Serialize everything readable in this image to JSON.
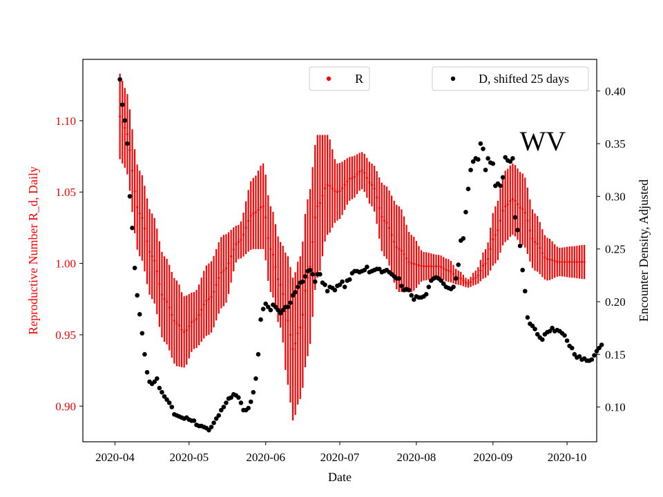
{
  "chart_data": {
    "type": "line",
    "title": "",
    "annotation": "WV",
    "xlabel": "Date",
    "ylabel_left": "Reproductive Number R_d, Daily",
    "ylabel_right": "Encounter Density, Adjusted",
    "colors": {
      "left_axis": "#ff0000",
      "R": "#ff0000",
      "D": "#000000",
      "axes": "#000000"
    },
    "x_ticks": [
      "2020-04",
      "2020-05",
      "2020-06",
      "2020-07",
      "2020-08",
      "2020-09",
      "2020-10"
    ],
    "x_tick_days": [
      0,
      30,
      61,
      91,
      122,
      153,
      183
    ],
    "xlim_days": [
      -13,
      195
    ],
    "y_left_ticks": [
      "0.90",
      "0.95",
      "1.00",
      "1.05",
      "1.10"
    ],
    "y_left_tick_values": [
      0.9,
      0.95,
      1.0,
      1.05,
      1.1
    ],
    "ylim_left": [
      0.875,
      1.143
    ],
    "y_right_ticks": [
      "0.10",
      "0.15",
      "0.20",
      "0.25",
      "0.30",
      "0.35",
      "0.40"
    ],
    "y_right_tick_values": [
      0.1,
      0.15,
      0.2,
      0.25,
      0.3,
      0.35,
      0.4
    ],
    "ylim_right": [
      0.067,
      0.43
    ],
    "legend_R": {
      "label": "R",
      "placement": "top-center"
    },
    "legend_D": {
      "label": "D, shifted 25 days",
      "placement": "top-right"
    },
    "series_R": {
      "name": "R",
      "error_bars": true,
      "knots": [
        {
          "day": 2,
          "center": 1.103,
          "half": 0.03
        },
        {
          "day": 4,
          "center": 1.095,
          "half": 0.028
        },
        {
          "day": 10,
          "center": 1.035,
          "half": 0.03
        },
        {
          "day": 15,
          "center": 1.005,
          "half": 0.03
        },
        {
          "day": 20,
          "center": 0.975,
          "half": 0.03
        },
        {
          "day": 25,
          "center": 0.958,
          "half": 0.03
        },
        {
          "day": 28,
          "center": 0.952,
          "half": 0.025
        },
        {
          "day": 32,
          "center": 0.96,
          "half": 0.02
        },
        {
          "day": 38,
          "center": 0.975,
          "half": 0.025
        },
        {
          "day": 44,
          "center": 0.995,
          "half": 0.025
        },
        {
          "day": 50,
          "center": 1.015,
          "half": 0.012
        },
        {
          "day": 56,
          "center": 1.035,
          "half": 0.025
        },
        {
          "day": 60,
          "center": 1.04,
          "half": 0.03
        },
        {
          "day": 63,
          "center": 1.01,
          "half": 0.03
        },
        {
          "day": 67,
          "center": 0.985,
          "half": 0.03
        },
        {
          "day": 70,
          "center": 0.96,
          "half": 0.045
        },
        {
          "day": 72,
          "center": 0.94,
          "half": 0.05
        },
        {
          "day": 75,
          "center": 0.955,
          "half": 0.05
        },
        {
          "day": 78,
          "center": 0.99,
          "half": 0.055
        },
        {
          "day": 82,
          "center": 1.04,
          "half": 0.05
        },
        {
          "day": 86,
          "center": 1.055,
          "half": 0.035
        },
        {
          "day": 90,
          "center": 1.05,
          "half": 0.02
        },
        {
          "day": 96,
          "center": 1.06,
          "half": 0.015
        },
        {
          "day": 100,
          "center": 1.065,
          "half": 0.013
        },
        {
          "day": 104,
          "center": 1.055,
          "half": 0.015
        },
        {
          "day": 109,
          "center": 1.03,
          "half": 0.025
        },
        {
          "day": 115,
          "center": 1.01,
          "half": 0.03
        },
        {
          "day": 120,
          "center": 1.0,
          "half": 0.02
        },
        {
          "day": 125,
          "center": 0.998,
          "half": 0.01
        },
        {
          "day": 131,
          "center": 0.998,
          "half": 0.008
        },
        {
          "day": 135,
          "center": 0.995,
          "half": 0.008
        },
        {
          "day": 139,
          "center": 0.99,
          "half": 0.005
        },
        {
          "day": 143,
          "center": 0.986,
          "half": 0.003
        },
        {
          "day": 146,
          "center": 0.99,
          "half": 0.005
        },
        {
          "day": 150,
          "center": 1.0,
          "half": 0.01
        },
        {
          "day": 154,
          "center": 1.02,
          "half": 0.02
        },
        {
          "day": 158,
          "center": 1.04,
          "half": 0.025
        },
        {
          "day": 161,
          "center": 1.045,
          "half": 0.025
        },
        {
          "day": 165,
          "center": 1.038,
          "half": 0.025
        },
        {
          "day": 170,
          "center": 1.015,
          "half": 0.02
        },
        {
          "day": 175,
          "center": 1.003,
          "half": 0.015
        },
        {
          "day": 180,
          "center": 1.001,
          "half": 0.01
        },
        {
          "day": 185,
          "center": 1.001,
          "half": 0.011
        },
        {
          "day": 190,
          "center": 1.001,
          "half": 0.012
        }
      ]
    },
    "series_D": {
      "name": "D, shifted 25 days",
      "points": [
        [
          2,
          0.411
        ],
        [
          3,
          0.387
        ],
        [
          4,
          0.372
        ],
        [
          5,
          0.35
        ],
        [
          6,
          0.3
        ],
        [
          7,
          0.27
        ],
        [
          8,
          0.232
        ],
        [
          9,
          0.206
        ],
        [
          10,
          0.188
        ],
        [
          11,
          0.17
        ],
        [
          12,
          0.15
        ],
        [
          13,
          0.133
        ],
        [
          14,
          0.124
        ],
        [
          15,
          0.122
        ],
        [
          16,
          0.124
        ],
        [
          17,
          0.127
        ],
        [
          18,
          0.118
        ],
        [
          19,
          0.114
        ],
        [
          20,
          0.11
        ],
        [
          21,
          0.107
        ],
        [
          22,
          0.104
        ],
        [
          23,
          0.1
        ],
        [
          24,
          0.093
        ],
        [
          25,
          0.092
        ],
        [
          26,
          0.091
        ],
        [
          27,
          0.09
        ],
        [
          28,
          0.089
        ],
        [
          29,
          0.09
        ],
        [
          30,
          0.088
        ],
        [
          31,
          0.087
        ],
        [
          32,
          0.087
        ],
        [
          33,
          0.083
        ],
        [
          34,
          0.082
        ],
        [
          35,
          0.082
        ],
        [
          36,
          0.081
        ],
        [
          37,
          0.08
        ],
        [
          38,
          0.078
        ],
        [
          39,
          0.081
        ],
        [
          40,
          0.085
        ],
        [
          41,
          0.089
        ],
        [
          42,
          0.092
        ],
        [
          43,
          0.097
        ],
        [
          44,
          0.1
        ],
        [
          45,
          0.104
        ],
        [
          46,
          0.108
        ],
        [
          47,
          0.109
        ],
        [
          48,
          0.112
        ],
        [
          49,
          0.111
        ],
        [
          50,
          0.109
        ],
        [
          51,
          0.104
        ],
        [
          52,
          0.097
        ],
        [
          53,
          0.097
        ],
        [
          54,
          0.099
        ],
        [
          55,
          0.105
        ],
        [
          56,
          0.114
        ],
        [
          57,
          0.127
        ],
        [
          58,
          0.15
        ],
        [
          59,
          0.183
        ],
        [
          60,
          0.193
        ],
        [
          61,
          0.198
        ],
        [
          62,
          0.195
        ],
        [
          63,
          0.192
        ],
        [
          64,
          0.197
        ],
        [
          65,
          0.195
        ],
        [
          66,
          0.192
        ],
        [
          67,
          0.189
        ],
        [
          68,
          0.192
        ],
        [
          69,
          0.195
        ],
        [
          70,
          0.195
        ],
        [
          71,
          0.199
        ],
        [
          72,
          0.206
        ],
        [
          73,
          0.209
        ],
        [
          74,
          0.214
        ],
        [
          75,
          0.218
        ],
        [
          76,
          0.219
        ],
        [
          77,
          0.224
        ],
        [
          78,
          0.229
        ],
        [
          79,
          0.23
        ],
        [
          80,
          0.226
        ],
        [
          81,
          0.219
        ],
        [
          82,
          0.226
        ],
        [
          83,
          0.226
        ],
        [
          84,
          0.218
        ],
        [
          85,
          0.216
        ],
        [
          86,
          0.21
        ],
        [
          87,
          0.214
        ],
        [
          88,
          0.213
        ],
        [
          89,
          0.211
        ],
        [
          90,
          0.215
        ],
        [
          91,
          0.216
        ],
        [
          92,
          0.219
        ],
        [
          93,
          0.214
        ],
        [
          94,
          0.22
        ],
        [
          95,
          0.221
        ],
        [
          96,
          0.227
        ],
        [
          97,
          0.229
        ],
        [
          98,
          0.229
        ],
        [
          99,
          0.228
        ],
        [
          100,
          0.229
        ],
        [
          101,
          0.23
        ],
        [
          102,
          0.233
        ],
        [
          103,
          0.228
        ],
        [
          104,
          0.229
        ],
        [
          105,
          0.23
        ],
        [
          106,
          0.231
        ],
        [
          107,
          0.231
        ],
        [
          108,
          0.228
        ],
        [
          109,
          0.229
        ],
        [
          110,
          0.23
        ],
        [
          111,
          0.228
        ],
        [
          112,
          0.226
        ],
        [
          113,
          0.224
        ],
        [
          114,
          0.222
        ],
        [
          115,
          0.222
        ],
        [
          116,
          0.215
        ],
        [
          117,
          0.211
        ],
        [
          118,
          0.212
        ],
        [
          119,
          0.211
        ],
        [
          120,
          0.206
        ],
        [
          121,
          0.202
        ],
        [
          122,
          0.205
        ],
        [
          123,
          0.204
        ],
        [
          124,
          0.204
        ],
        [
          125,
          0.205
        ],
        [
          126,
          0.207
        ],
        [
          127,
          0.214
        ],
        [
          128,
          0.22
        ],
        [
          129,
          0.222
        ],
        [
          130,
          0.223
        ],
        [
          131,
          0.222
        ],
        [
          132,
          0.22
        ],
        [
          133,
          0.217
        ],
        [
          134,
          0.214
        ],
        [
          135,
          0.213
        ],
        [
          136,
          0.212
        ],
        [
          137,
          0.214
        ],
        [
          138,
          0.222
        ],
        [
          139,
          0.235
        ],
        [
          140,
          0.258
        ],
        [
          141,
          0.26
        ],
        [
          142,
          0.285
        ],
        [
          143,
          0.307
        ],
        [
          144,
          0.325
        ],
        [
          145,
          0.333
        ],
        [
          146,
          0.336
        ],
        [
          147,
          0.335
        ],
        [
          148,
          0.35
        ],
        [
          149,
          0.345
        ],
        [
          150,
          0.325
        ],
        [
          151,
          0.336
        ],
        [
          152,
          0.332
        ],
        [
          153,
          0.331
        ],
        [
          154,
          0.31
        ],
        [
          155,
          0.312
        ],
        [
          156,
          0.31
        ],
        [
          157,
          0.318
        ],
        [
          158,
          0.337
        ],
        [
          159,
          0.334
        ],
        [
          160,
          0.333
        ],
        [
          161,
          0.336
        ],
        [
          162,
          0.28
        ],
        [
          163,
          0.268
        ],
        [
          164,
          0.253
        ],
        [
          165,
          0.23
        ],
        [
          166,
          0.21
        ],
        [
          167,
          0.185
        ],
        [
          168,
          0.179
        ],
        [
          169,
          0.177
        ],
        [
          170,
          0.174
        ],
        [
          171,
          0.169
        ],
        [
          172,
          0.166
        ],
        [
          173,
          0.164
        ],
        [
          174,
          0.169
        ],
        [
          175,
          0.171
        ],
        [
          176,
          0.172
        ],
        [
          177,
          0.175
        ],
        [
          178,
          0.172
        ],
        [
          179,
          0.173
        ],
        [
          180,
          0.172
        ],
        [
          181,
          0.17
        ],
        [
          182,
          0.168
        ],
        [
          183,
          0.163
        ],
        [
          184,
          0.158
        ],
        [
          185,
          0.156
        ],
        [
          186,
          0.15
        ],
        [
          187,
          0.147
        ],
        [
          188,
          0.148
        ],
        [
          189,
          0.145
        ],
        [
          190,
          0.146
        ],
        [
          191,
          0.144
        ],
        [
          192,
          0.144
        ],
        [
          193,
          0.145
        ],
        [
          194,
          0.149
        ],
        [
          195,
          0.153
        ],
        [
          196,
          0.156
        ],
        [
          197,
          0.159
        ]
      ]
    }
  }
}
